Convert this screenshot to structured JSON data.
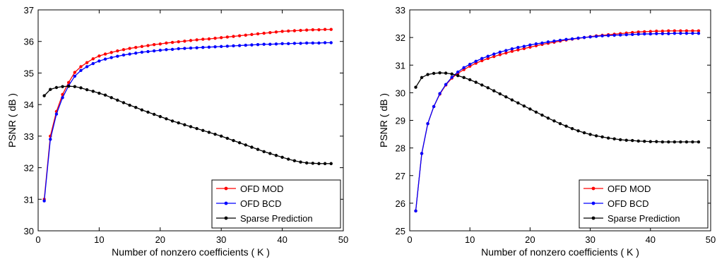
{
  "chart_data": [
    {
      "type": "line",
      "title": "",
      "xlabel": "Number of nonzero coefficients ( K )",
      "ylabel": "PSNR ( dB )",
      "xlim": [
        0,
        50
      ],
      "ylim": [
        30,
        37
      ],
      "xticks": [
        0,
        10,
        20,
        30,
        40,
        50
      ],
      "yticks": [
        30,
        31,
        32,
        33,
        34,
        35,
        36,
        37
      ],
      "grid": false,
      "legend_position": "bottom-right",
      "x": [
        1,
        2,
        3,
        4,
        5,
        6,
        7,
        8,
        9,
        10,
        11,
        12,
        13,
        14,
        15,
        16,
        17,
        18,
        19,
        20,
        21,
        22,
        23,
        24,
        25,
        26,
        27,
        28,
        29,
        30,
        31,
        32,
        33,
        34,
        35,
        36,
        37,
        38,
        39,
        40,
        41,
        42,
        43,
        44,
        45,
        46,
        47,
        48
      ],
      "series": [
        {
          "name": "OFD MOD",
          "color": "#ff0000",
          "values": [
            31.0,
            33.0,
            33.78,
            34.32,
            34.7,
            35.02,
            35.2,
            35.33,
            35.45,
            35.54,
            35.6,
            35.65,
            35.7,
            35.74,
            35.78,
            35.81,
            35.84,
            35.87,
            35.9,
            35.92,
            35.95,
            35.97,
            35.99,
            36.01,
            36.03,
            36.05,
            36.07,
            36.08,
            36.1,
            36.12,
            36.14,
            36.16,
            36.18,
            36.2,
            36.22,
            36.24,
            36.26,
            36.28,
            36.3,
            36.32,
            36.33,
            36.34,
            36.35,
            36.36,
            36.37,
            36.37,
            36.38,
            36.38
          ]
        },
        {
          "name": "OFD BCD",
          "color": "#0000ff",
          "values": [
            30.95,
            32.9,
            33.7,
            34.22,
            34.6,
            34.9,
            35.08,
            35.2,
            35.3,
            35.38,
            35.44,
            35.49,
            35.53,
            35.57,
            35.6,
            35.63,
            35.66,
            35.68,
            35.7,
            35.72,
            35.74,
            35.75,
            35.77,
            35.78,
            35.79,
            35.8,
            35.81,
            35.82,
            35.83,
            35.84,
            35.85,
            35.86,
            35.87,
            35.88,
            35.89,
            35.9,
            35.91,
            35.91,
            35.92,
            35.93,
            35.93,
            35.94,
            35.94,
            35.95,
            35.95,
            35.95,
            35.96,
            35.96
          ]
        },
        {
          "name": "Sparse Prediction",
          "color": "#000000",
          "values": [
            34.28,
            34.48,
            34.54,
            34.57,
            34.58,
            34.57,
            34.53,
            34.47,
            34.42,
            34.36,
            34.3,
            34.22,
            34.14,
            34.06,
            33.98,
            33.91,
            33.83,
            33.76,
            33.69,
            33.62,
            33.55,
            33.48,
            33.42,
            33.36,
            33.3,
            33.24,
            33.18,
            33.12,
            33.06,
            33.0,
            32.93,
            32.86,
            32.79,
            32.72,
            32.65,
            32.58,
            32.51,
            32.45,
            32.39,
            32.33,
            32.27,
            32.22,
            32.18,
            32.15,
            32.14,
            32.13,
            32.13,
            32.13
          ]
        }
      ]
    },
    {
      "type": "line",
      "title": "",
      "xlabel": "Number of nonzero coefficients ( K )",
      "ylabel": "PSNR ( dB )",
      "xlim": [
        0,
        50
      ],
      "ylim": [
        25,
        33
      ],
      "xticks": [
        0,
        10,
        20,
        30,
        40,
        50
      ],
      "yticks": [
        25,
        26,
        27,
        28,
        29,
        30,
        31,
        32,
        33
      ],
      "grid": false,
      "legend_position": "bottom-right",
      "x": [
        1,
        2,
        3,
        4,
        5,
        6,
        7,
        8,
        9,
        10,
        11,
        12,
        13,
        14,
        15,
        16,
        17,
        18,
        19,
        20,
        21,
        22,
        23,
        24,
        25,
        26,
        27,
        28,
        29,
        30,
        31,
        32,
        33,
        34,
        35,
        36,
        37,
        38,
        39,
        40,
        41,
        42,
        43,
        44,
        45,
        46,
        47,
        48
      ],
      "series": [
        {
          "name": "OFD MOD",
          "color": "#ff0000",
          "values": [
            25.72,
            27.8,
            28.88,
            29.5,
            29.95,
            30.28,
            30.53,
            30.7,
            30.84,
            30.96,
            31.07,
            31.16,
            31.24,
            31.31,
            31.38,
            31.44,
            31.5,
            31.55,
            31.6,
            31.65,
            31.7,
            31.75,
            31.79,
            31.83,
            31.87,
            31.91,
            31.94,
            31.97,
            32.0,
            32.03,
            32.06,
            32.08,
            32.1,
            32.12,
            32.14,
            32.16,
            32.18,
            32.2,
            32.21,
            32.22,
            32.23,
            32.23,
            32.24,
            32.24,
            32.24,
            32.24,
            32.24,
            32.24
          ]
        },
        {
          "name": "OFD BCD",
          "color": "#0000ff",
          "values": [
            25.72,
            27.8,
            28.88,
            29.5,
            29.97,
            30.3,
            30.56,
            30.75,
            30.91,
            31.03,
            31.14,
            31.24,
            31.32,
            31.4,
            31.47,
            31.53,
            31.59,
            31.64,
            31.68,
            31.73,
            31.77,
            31.8,
            31.84,
            31.87,
            31.9,
            31.93,
            31.95,
            31.98,
            32.0,
            32.02,
            32.04,
            32.06,
            32.07,
            32.08,
            32.09,
            32.1,
            32.11,
            32.12,
            32.13,
            32.13,
            32.14,
            32.14,
            32.14,
            32.15,
            32.15,
            32.15,
            32.15,
            32.15
          ]
        },
        {
          "name": "Sparse Prediction",
          "color": "#000000",
          "values": [
            30.2,
            30.55,
            30.66,
            30.7,
            30.72,
            30.71,
            30.68,
            30.62,
            30.55,
            30.47,
            30.38,
            30.28,
            30.18,
            30.07,
            29.96,
            29.85,
            29.74,
            29.63,
            29.52,
            29.41,
            29.3,
            29.19,
            29.08,
            28.98,
            28.88,
            28.79,
            28.7,
            28.62,
            28.55,
            28.49,
            28.44,
            28.4,
            28.36,
            28.33,
            28.3,
            28.28,
            28.27,
            28.25,
            28.24,
            28.23,
            28.23,
            28.22,
            28.22,
            28.22,
            28.22,
            28.22,
            28.22,
            28.22
          ]
        }
      ]
    }
  ]
}
